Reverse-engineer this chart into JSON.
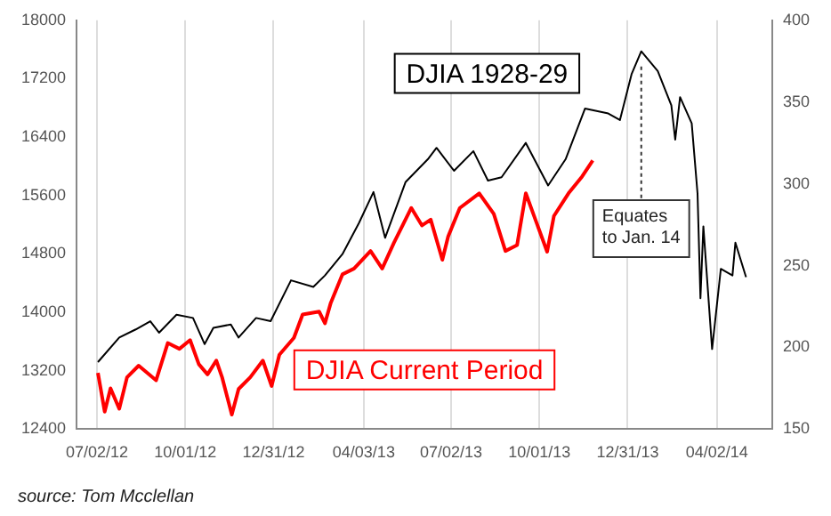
{
  "chart_data": {
    "type": "line",
    "xlim": [
      "2012-06-11",
      "2014-05-29"
    ],
    "xticks": [
      {
        "value": "2012-07-02",
        "label": "07/02/12"
      },
      {
        "value": "2012-10-01",
        "label": "10/01/12"
      },
      {
        "value": "2012-12-31",
        "label": "12/31/12"
      },
      {
        "value": "2013-04-03",
        "label": "04/03/13"
      },
      {
        "value": "2013-07-02",
        "label": "07/02/13"
      },
      {
        "value": "2013-10-01",
        "label": "10/01/13"
      },
      {
        "value": "2013-12-31",
        "label": "12/31/13"
      },
      {
        "value": "2014-04-02",
        "label": "04/02/14"
      }
    ],
    "ylim": [
      12400,
      18000
    ],
    "yticks": [
      12400,
      13200,
      14000,
      14800,
      15600,
      16400,
      17200,
      18000
    ],
    "y2lim": [
      150,
      400
    ],
    "y2ticks": [
      150,
      200,
      250,
      300,
      350,
      400
    ],
    "grid": "x",
    "legend": false,
    "marker": "none",
    "line_style": "solid",
    "series": [
      {
        "name": "DJIA 1928-29",
        "color": "#000000",
        "axis": "y2",
        "x": [
          "2012-07-03",
          "2012-07-25",
          "2012-08-11",
          "2012-08-26",
          "2012-09-04",
          "2012-09-22",
          "2012-10-09",
          "2012-10-21",
          "2012-10-30",
          "2012-11-17",
          "2012-11-25",
          "2012-12-13",
          "2012-12-28",
          "2013-01-18",
          "2013-02-10",
          "2013-02-22",
          "2013-03-12",
          "2013-03-29",
          "2013-04-13",
          "2013-04-25",
          "2013-05-16",
          "2013-06-08",
          "2013-06-17",
          "2013-07-05",
          "2013-07-25",
          "2013-08-09",
          "2013-08-23",
          "2013-09-17",
          "2013-10-10",
          "2013-10-28",
          "2013-11-17",
          "2013-12-11",
          "2013-12-23",
          "2014-01-04",
          "2014-01-14",
          "2014-01-31",
          "2014-02-14",
          "2014-02-18",
          "2014-02-23",
          "2014-03-07",
          "2014-03-13",
          "2014-03-16",
          "2014-03-19",
          "2014-03-28",
          "2014-04-06",
          "2014-04-18",
          "2014-04-21",
          "2014-05-02"
        ],
        "values": [
          191,
          206,
          211,
          216,
          209,
          220,
          218,
          202,
          212,
          214,
          206,
          218,
          216,
          241,
          237,
          244,
          257,
          276,
          295,
          267,
          301,
          315,
          322,
          308,
          320,
          302,
          304,
          325,
          299,
          315,
          346,
          343,
          339,
          367,
          381,
          369,
          348,
          327,
          353,
          337,
          294,
          230,
          274,
          199,
          248,
          244,
          264,
          243
        ]
      },
      {
        "name": "DJIA Current Period",
        "color": "#ff0000",
        "axis": "y",
        "x": [
          "2012-07-03",
          "2012-07-10",
          "2012-07-16",
          "2012-07-25",
          "2012-08-02",
          "2012-08-14",
          "2012-09-01",
          "2012-09-13",
          "2012-09-25",
          "2012-10-06",
          "2012-10-15",
          "2012-10-24",
          "2012-11-02",
          "2012-11-08",
          "2012-11-18",
          "2012-11-25",
          "2012-12-07",
          "2012-12-20",
          "2012-12-29",
          "2013-01-06",
          "2013-01-21",
          "2013-01-30",
          "2013-02-16",
          "2013-02-22",
          "2013-02-28",
          "2013-03-12",
          "2013-03-24",
          "2013-04-10",
          "2013-04-22",
          "2013-05-04",
          "2013-05-22",
          "2013-06-02",
          "2013-06-11",
          "2013-06-23",
          "2013-06-29",
          "2013-07-11",
          "2013-07-31",
          "2013-08-15",
          "2013-08-27",
          "2013-09-08",
          "2013-09-17",
          "2013-09-28",
          "2013-10-09",
          "2013-10-16",
          "2013-10-31",
          "2013-11-14",
          "2013-11-25"
        ],
        "values": [
          13170,
          12640,
          12960,
          12680,
          13110,
          13270,
          13070,
          13580,
          13500,
          13620,
          13290,
          13150,
          13340,
          13110,
          12600,
          12950,
          13110,
          13340,
          12990,
          13420,
          13650,
          13970,
          14010,
          13850,
          14130,
          14520,
          14600,
          14840,
          14600,
          14950,
          15430,
          15190,
          15270,
          14720,
          15040,
          15430,
          15630,
          15350,
          14840,
          14920,
          15630,
          15230,
          14830,
          15320,
          15630,
          15860,
          16080
        ]
      }
    ],
    "ref_lines": [
      {
        "axis": "x",
        "value": "2014-01-14",
        "label": "Equates\nto Jan. 14",
        "line_style": "dotted",
        "color": "#333333"
      }
    ],
    "annotations": [
      "source: Tom Mcclellan"
    ]
  }
}
